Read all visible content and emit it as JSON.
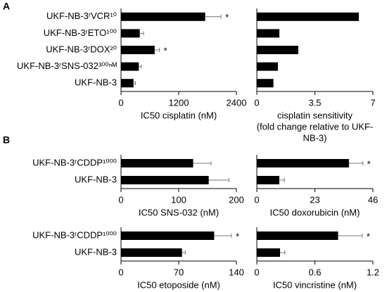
{
  "panel_labels": [
    "A",
    "B"
  ],
  "chart_data": [
    {
      "type": "bar",
      "orientation": "horizontal",
      "color": "#000000",
      "categories": [
        "UKF-NB-3ʳVCR¹⁰",
        "UKF-NB-3ʳETO¹⁰⁰",
        "UKF-NB-3ʳDOX²⁰",
        "UKF-NB-3ʳSNS-032³⁰⁰ⁿᴹ",
        "UKF-NB-3"
      ],
      "values": [
        1750,
        390,
        700,
        370,
        260
      ],
      "errors": [
        330,
        80,
        100,
        50,
        40
      ],
      "annotations": [
        "*",
        null,
        "*",
        null,
        null
      ],
      "xlabel": [
        "IC50 cisplatin (nM)"
      ],
      "xlim": [
        0,
        2400
      ],
      "xticks": [
        0,
        1200,
        2400
      ]
    },
    {
      "type": "bar",
      "orientation": "horizontal",
      "color": "#000000",
      "values": [
        6.15,
        1.36,
        2.5,
        1.27,
        1.0
      ],
      "xlabel": [
        "cisplatin sensitivity",
        "(fold change relative to UKF-",
        "NB-3)"
      ],
      "xlim": [
        0,
        7
      ],
      "xticks": [
        0,
        3.5,
        7
      ]
    },
    {
      "type": "bar",
      "orientation": "horizontal",
      "color": "#000000",
      "categories": [
        "UKF-NB-3ʳCDDP¹⁰⁰⁰",
        "UKF-NB-3"
      ],
      "values": [
        125,
        152
      ],
      "errors": [
        31,
        35
      ],
      "xlabel": [
        "IC50 SNS-032 (nM)"
      ],
      "xlim": [
        0,
        200
      ],
      "xticks": [
        0,
        100,
        200
      ]
    },
    {
      "type": "bar",
      "orientation": "horizontal",
      "color": "#000000",
      "values": [
        36.5,
        8.9
      ],
      "errors": [
        5.5,
        2
      ],
      "annotations": [
        "*",
        null
      ],
      "xlabel": [
        "IC50 doxorubicin (nM)"
      ],
      "xlim": [
        0,
        46
      ],
      "xticks": [
        0,
        23,
        46
      ]
    },
    {
      "type": "bar",
      "orientation": "horizontal",
      "color": "#000000",
      "categories": [
        "UKF-NB-3ʳCDDP¹⁰⁰⁰",
        "UKF-NB-3"
      ],
      "values": [
        113,
        74
      ],
      "errors": [
        21,
        4
      ],
      "annotations": [
        "*",
        null
      ],
      "xlabel": [
        "IC50 etoposide (nM)"
      ],
      "xlim": [
        0,
        140
      ],
      "xticks": [
        0,
        70,
        140
      ]
    },
    {
      "type": "bar",
      "orientation": "horizontal",
      "color": "#000000",
      "values": [
        0.84,
        0.24
      ],
      "errors": [
        0.25,
        0.05
      ],
      "annotations": [
        "*",
        null
      ],
      "xlabel": [
        "IC50 vincristine (nM)"
      ],
      "xlim": [
        0,
        1.2
      ],
      "xticks": [
        0,
        0.6,
        1.2
      ]
    }
  ]
}
